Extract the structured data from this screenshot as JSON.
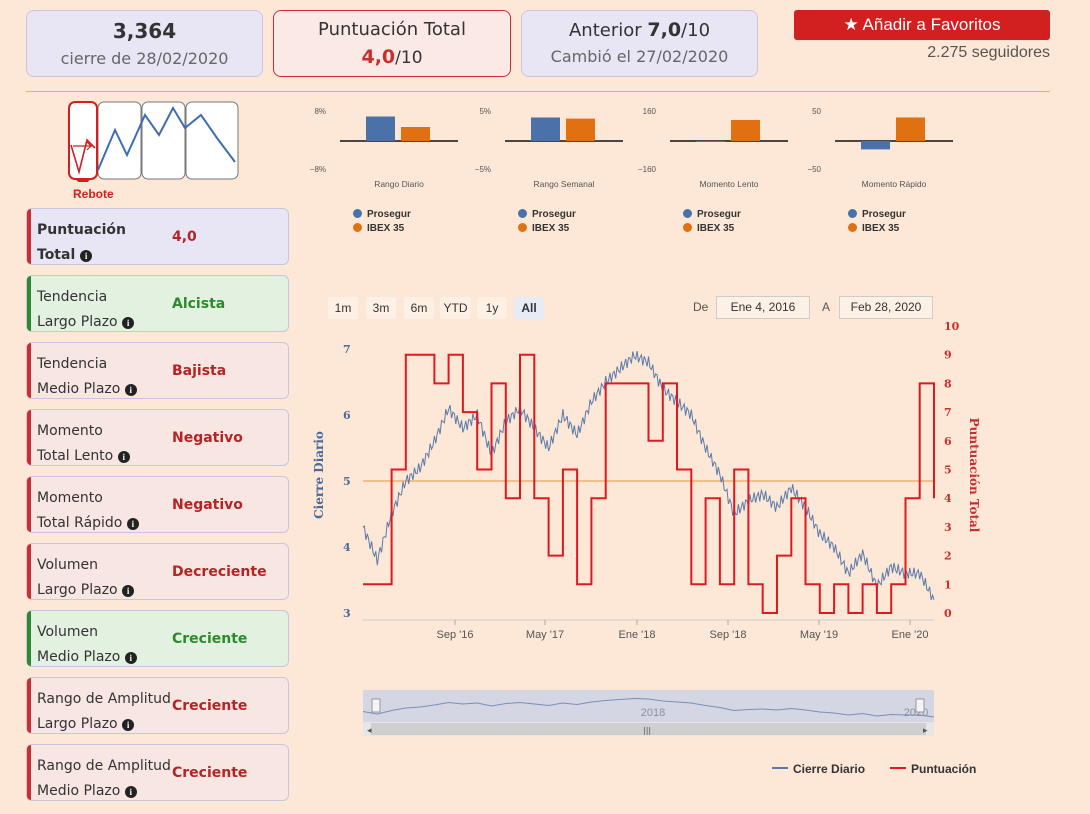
{
  "price_card": {
    "value": "3,364",
    "subtitle": "cierre de 28/02/2020"
  },
  "score_card": {
    "title": "Puntuación Total",
    "score": "4,0",
    "suffix": "/10"
  },
  "prev_card": {
    "prefix": "Anterior",
    "score": "7,0",
    "suffix": "/10",
    "subtitle": "Cambió el 27/02/2020"
  },
  "favorites": {
    "label": "Añadir a Favoritos",
    "followers": "2.275 seguidores"
  },
  "pattern": {
    "label": "Rebote"
  },
  "metrics": [
    {
      "line1": "Puntuación",
      "line2": "Total",
      "value": "4,0",
      "tone": "red",
      "bg": "#e8e6f5",
      "bar": "#c8302f",
      "bold": true
    },
    {
      "line1": "Tendencia",
      "line2": "Largo Plazo",
      "value": "Alcista",
      "tone": "green",
      "bg": "#e3f1e1",
      "bar": "#2c8a2c"
    },
    {
      "line1": "Tendencia",
      "line2": "Medio Plazo",
      "value": "Bajista",
      "tone": "red",
      "bg": "#f8e6e3",
      "bar": "#c8302f"
    },
    {
      "line1": "Momento",
      "line2": "Total Lento",
      "value": "Negativo",
      "tone": "red",
      "bg": "#f8e6e3",
      "bar": "#c8302f"
    },
    {
      "line1": "Momento",
      "line2": "Total Rápido",
      "value": "Negativo",
      "tone": "red",
      "bg": "#f8e6e3",
      "bar": "#c8302f"
    },
    {
      "line1": "Volumen",
      "line2": "Largo Plazo",
      "value": "Decreciente",
      "tone": "red",
      "bg": "#f8e6e3",
      "bar": "#c8302f"
    },
    {
      "line1": "Volumen",
      "line2": "Medio Plazo",
      "value": "Creciente",
      "tone": "green",
      "bg": "#e3f1e1",
      "bar": "#2c8a2c"
    },
    {
      "line1": "Rango de Amplitud",
      "line2": "Largo Plazo",
      "value": "Creciente",
      "tone": "red",
      "bg": "#f8e6e3",
      "bar": "#c8302f"
    },
    {
      "line1": "Rango de Amplitud",
      "line2": "Medio Plazo",
      "value": "Creciente",
      "tone": "red",
      "bg": "#f8e6e3",
      "bar": "#c8302f"
    }
  ],
  "colors": {
    "prosegur": "#4a72a8",
    "ibex": "#e07010",
    "score_line": "#e01820",
    "close_line": "#5a7aaa",
    "ref_line": "#f0b070"
  },
  "range_selector": {
    "buttons": [
      "1m",
      "3m",
      "6m",
      "YTD",
      "1y",
      "All"
    ],
    "active": "All",
    "from_label": "De",
    "from": "Ene 4, 2016",
    "to_label": "A",
    "to": "Feb 28, 2020"
  },
  "navigator": {
    "label_2018": "2018",
    "label_2020": "2020"
  },
  "main_legend": {
    "close": "Cierre Diario",
    "score": "Puntuación"
  },
  "chart_data": [
    {
      "type": "bar",
      "title": "Rango Diario",
      "categories": [
        "Prosegur",
        "IBEX 35"
      ],
      "values": [
        7.0,
        4.0
      ],
      "ylim": [
        -8,
        8
      ],
      "yticks": [
        "8%",
        "−8%"
      ],
      "legend": [
        "Prosegur",
        "IBEX 35"
      ]
    },
    {
      "type": "bar",
      "title": "Rango Semanal",
      "categories": [
        "Prosegur",
        "IBEX 35"
      ],
      "values": [
        4.2,
        4.0
      ],
      "ylim": [
        -5,
        5
      ],
      "yticks": [
        "5%",
        "−5%"
      ],
      "legend": [
        "Prosegur",
        "IBEX 35"
      ]
    },
    {
      "type": "bar",
      "title": "Momento Lento",
      "categories": [
        "Prosegur",
        "IBEX 35"
      ],
      "values": [
        -5,
        120
      ],
      "ylim": [
        -160,
        160
      ],
      "yticks": [
        "160",
        "−160"
      ],
      "legend": [
        "Prosegur",
        "IBEX 35"
      ]
    },
    {
      "type": "bar",
      "title": "Momento Rápido",
      "categories": [
        "Prosegur",
        "IBEX 35"
      ],
      "values": [
        -15,
        42
      ],
      "ylim": [
        -50,
        50
      ],
      "yticks": [
        "50",
        "−50"
      ],
      "legend": [
        "Prosegur",
        "IBEX 35"
      ]
    },
    {
      "type": "line",
      "ylabel": "Cierre Diario",
      "y2label": "Puntuación Total",
      "x_ticks": [
        "Sep '16",
        "May '17",
        "Ene '18",
        "Sep '18",
        "May '19",
        "Ene '20"
      ],
      "y_ticks": [
        "3",
        "4",
        "5",
        "6",
        "7"
      ],
      "y2_ticks": [
        "0",
        "1",
        "2",
        "3",
        "4",
        "5",
        "6",
        "7",
        "8",
        "9",
        "10"
      ],
      "ylim": [
        3,
        7
      ],
      "y2lim": [
        0,
        10
      ],
      "series": [
        {
          "name": "Cierre Diario",
          "axis": "y",
          "values": [
            4.3,
            3.8,
            4.5,
            5.0,
            5.2,
            5.6,
            6.1,
            5.8,
            6.0,
            5.4,
            5.9,
            6.1,
            5.8,
            5.5,
            6.0,
            5.7,
            6.2,
            6.5,
            6.7,
            6.9,
            6.8,
            6.4,
            6.2,
            6.0,
            5.5,
            5.1,
            4.5,
            4.7,
            4.8,
            4.6,
            4.9,
            4.6,
            4.2,
            4.0,
            3.6,
            3.9,
            3.4,
            3.7,
            3.6,
            3.6,
            3.2
          ]
        },
        {
          "name": "Puntuación",
          "axis": "y2",
          "values": [
            1,
            1,
            5,
            9,
            9,
            8,
            9,
            7,
            5,
            8,
            4,
            9,
            4,
            2,
            5,
            1,
            4,
            8,
            8,
            8,
            6,
            8,
            5,
            1,
            4,
            1,
            5,
            1,
            0,
            2,
            4,
            1,
            0,
            1,
            0,
            1,
            0,
            1,
            4,
            8,
            4
          ]
        }
      ],
      "reference_line": 5
    }
  ]
}
